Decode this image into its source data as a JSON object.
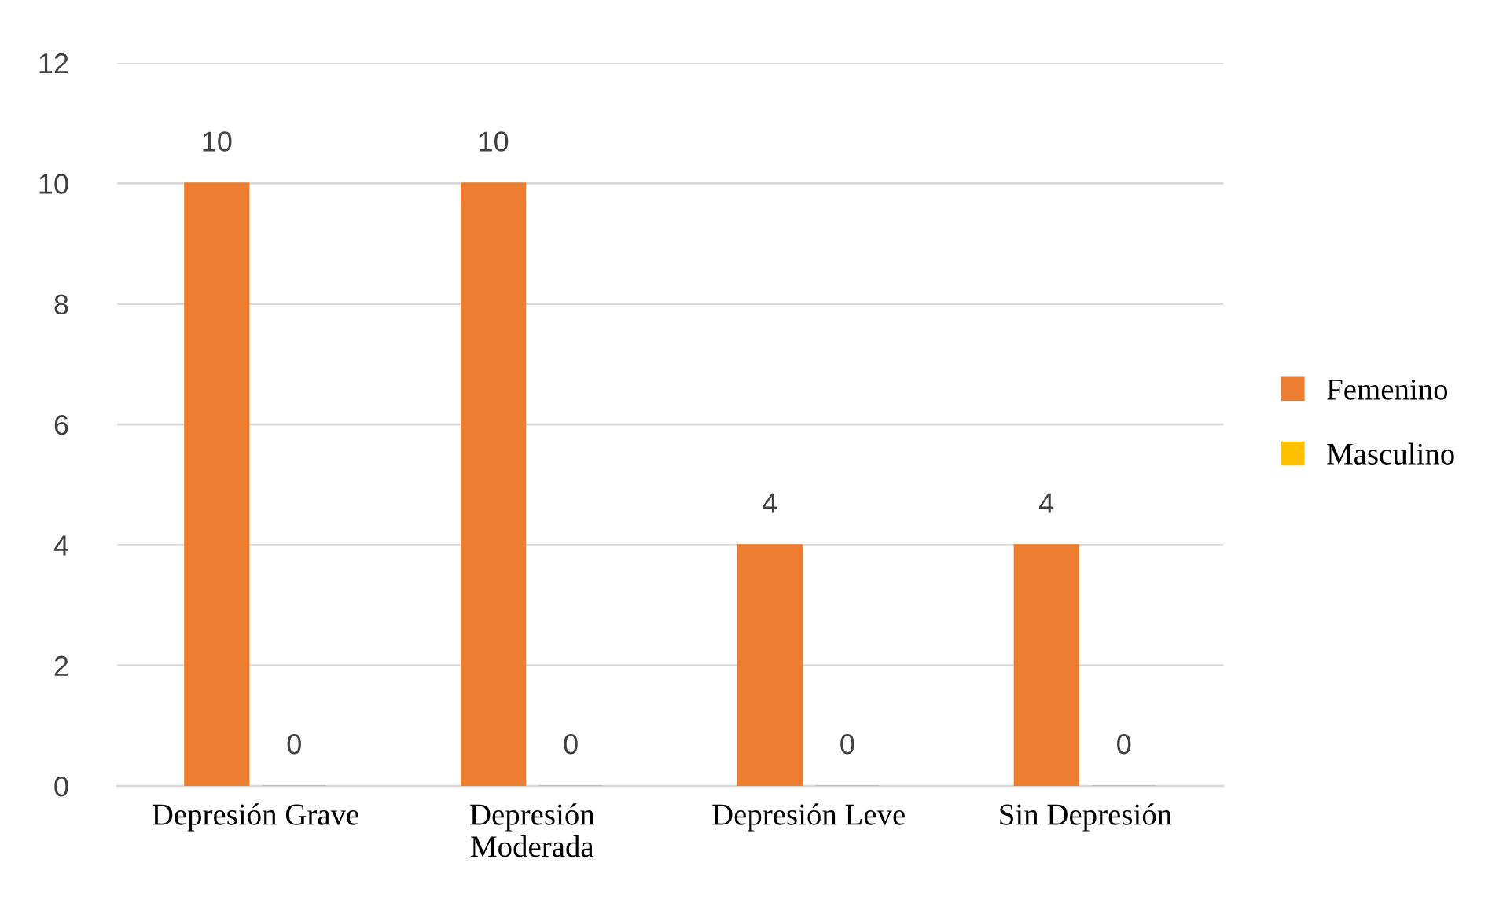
{
  "chart_data": {
    "type": "bar",
    "categories": [
      "Depresión Grave",
      "Depresión\nModerada",
      "Depresión Leve",
      "Sin Depresión"
    ],
    "series": [
      {
        "name": "Femenino",
        "color": "#ed7d31",
        "values": [
          10,
          10,
          4,
          4
        ]
      },
      {
        "name": "Masculino",
        "color": "#ffc000",
        "values": [
          0,
          0,
          0,
          0
        ]
      }
    ],
    "ylim": [
      0,
      12
    ],
    "yticks": [
      0,
      2,
      4,
      6,
      8,
      10,
      12
    ],
    "grid": "y",
    "legend": "right",
    "data_labels": true
  }
}
